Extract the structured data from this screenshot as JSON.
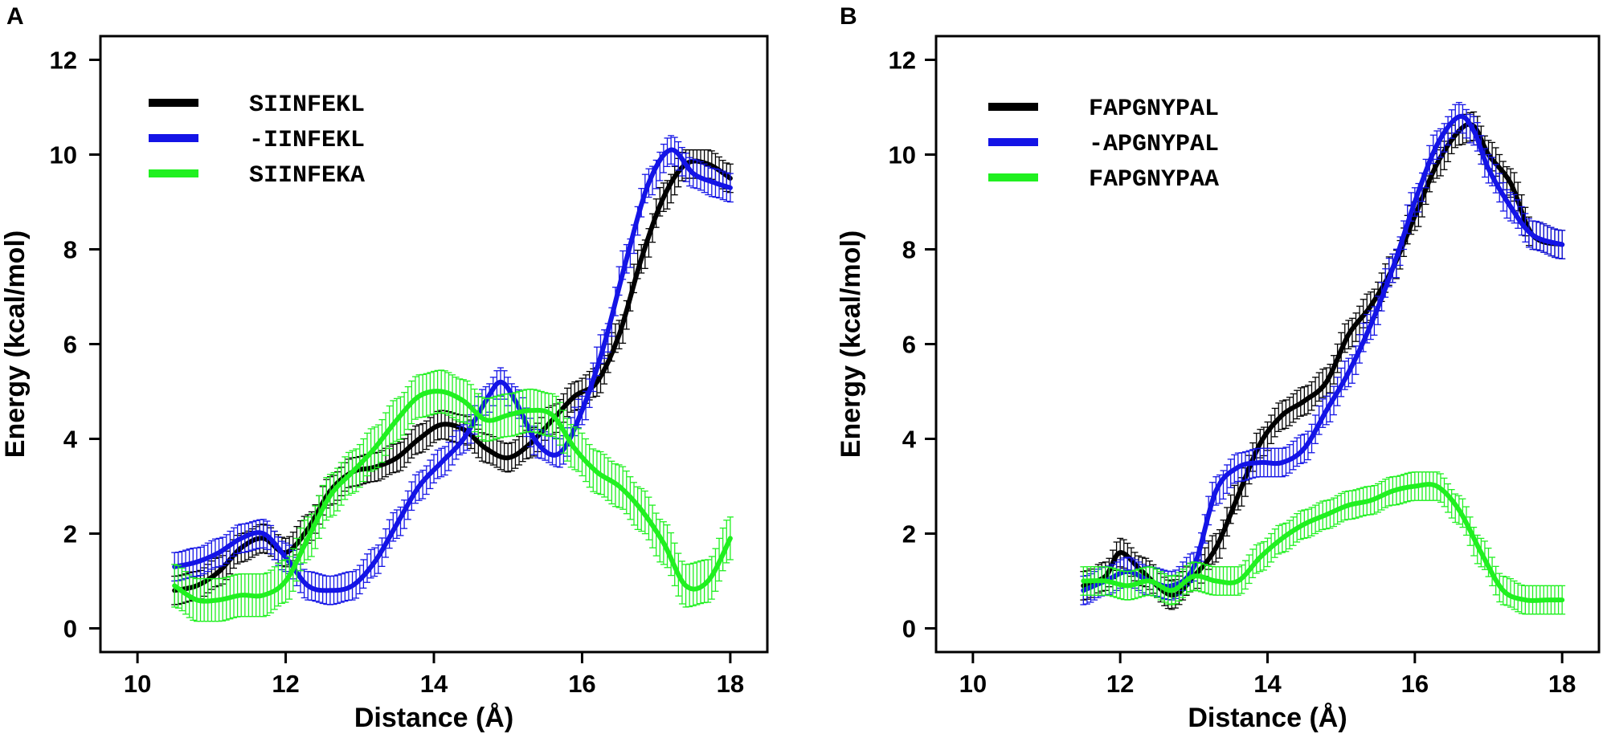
{
  "chart_data": [
    {
      "type": "line",
      "panel_label": "A",
      "xlabel": "Distance (Å)",
      "ylabel": "Energy (kcal/mol)",
      "xlim": [
        9.5,
        18.5
      ],
      "ylim": [
        -0.5,
        12.5
      ],
      "xticks": [
        10,
        12,
        14,
        16,
        18
      ],
      "yticks": [
        0,
        2,
        4,
        6,
        8,
        10,
        12
      ],
      "error_bars": true,
      "legend_position": "top-left",
      "series": [
        {
          "name": "SIINFEKL",
          "color": "#000000",
          "err": 0.3,
          "x": [
            10.5,
            10.8,
            11.1,
            11.4,
            11.7,
            12.0,
            12.3,
            12.6,
            12.9,
            13.2,
            13.5,
            13.8,
            14.1,
            14.4,
            14.7,
            15.0,
            15.3,
            15.6,
            15.9,
            16.2,
            16.5,
            16.8,
            17.1,
            17.4,
            17.7,
            18.0
          ],
          "y": [
            0.8,
            0.9,
            1.2,
            1.7,
            1.9,
            1.6,
            2.1,
            2.9,
            3.3,
            3.4,
            3.6,
            4.0,
            4.3,
            4.2,
            3.8,
            3.6,
            3.9,
            4.4,
            4.9,
            5.2,
            6.2,
            7.8,
            9.1,
            9.8,
            9.8,
            9.5
          ]
        },
        {
          "name": "-IINFEKL",
          "color": "#1414e6",
          "err": 0.3,
          "x": [
            10.5,
            10.8,
            11.1,
            11.4,
            11.7,
            12.0,
            12.3,
            12.6,
            12.9,
            13.2,
            13.5,
            13.8,
            14.1,
            14.4,
            14.7,
            14.9,
            15.1,
            15.4,
            15.7,
            16.0,
            16.3,
            16.6,
            16.9,
            17.2,
            17.5,
            17.8,
            18.0
          ],
          "y": [
            1.3,
            1.4,
            1.6,
            1.9,
            2.0,
            1.5,
            0.9,
            0.8,
            0.9,
            1.4,
            2.2,
            3.0,
            3.5,
            4.0,
            4.8,
            5.2,
            4.8,
            3.9,
            3.7,
            4.6,
            6.0,
            7.8,
            9.4,
            10.1,
            9.6,
            9.4,
            9.3
          ]
        },
        {
          "name": "SIINFEKA",
          "color": "#20f020",
          "err": 0.45,
          "x": [
            10.5,
            10.8,
            11.1,
            11.4,
            11.7,
            12.0,
            12.3,
            12.6,
            12.9,
            13.2,
            13.5,
            13.8,
            14.1,
            14.4,
            14.7,
            15.0,
            15.3,
            15.6,
            15.9,
            16.2,
            16.5,
            16.8,
            17.1,
            17.4,
            17.7,
            18.0
          ],
          "y": [
            0.9,
            0.6,
            0.6,
            0.7,
            0.7,
            1.0,
            1.9,
            2.8,
            3.3,
            3.8,
            4.4,
            4.9,
            5.0,
            4.8,
            4.4,
            4.5,
            4.6,
            4.5,
            3.8,
            3.3,
            3.0,
            2.5,
            1.8,
            0.9,
            1.0,
            1.9
          ]
        }
      ]
    },
    {
      "type": "line",
      "panel_label": "B",
      "xlabel": "Distance (Å)",
      "ylabel": "Energy (kcal/mol)",
      "xlim": [
        9.5,
        18.5
      ],
      "ylim": [
        -0.5,
        12.5
      ],
      "xticks": [
        10,
        12,
        14,
        16,
        18
      ],
      "yticks": [
        0,
        2,
        4,
        6,
        8,
        10,
        12
      ],
      "error_bars": true,
      "legend_position": "top-left",
      "series": [
        {
          "name": "FAPGNYPAL",
          "color": "#000000",
          "err": 0.3,
          "x": [
            11.5,
            11.8,
            12.0,
            12.3,
            12.7,
            13.0,
            13.3,
            13.6,
            13.9,
            14.2,
            14.5,
            14.8,
            15.1,
            15.4,
            15.7,
            16.0,
            16.3,
            16.6,
            16.8,
            17.0,
            17.3,
            17.6,
            18.0
          ],
          "y": [
            0.9,
            1.1,
            1.6,
            1.2,
            0.7,
            1.1,
            1.7,
            2.8,
            3.9,
            4.5,
            4.8,
            5.2,
            6.2,
            6.8,
            7.6,
            8.7,
            9.8,
            10.5,
            10.6,
            10.0,
            9.4,
            8.3,
            8.1
          ]
        },
        {
          "name": "-APGNYPAL",
          "color": "#1414e6",
          "err": 0.3,
          "x": [
            11.5,
            11.8,
            12.1,
            12.4,
            12.7,
            13.0,
            13.3,
            13.6,
            13.9,
            14.2,
            14.5,
            14.8,
            15.1,
            15.4,
            15.7,
            16.0,
            16.3,
            16.6,
            16.8,
            17.0,
            17.3,
            17.6,
            18.0
          ],
          "y": [
            0.8,
            1.0,
            1.2,
            1.0,
            0.9,
            1.3,
            2.9,
            3.4,
            3.5,
            3.5,
            3.8,
            4.6,
            5.4,
            6.4,
            7.6,
            9.0,
            10.2,
            10.8,
            10.5,
            9.7,
            8.9,
            8.3,
            8.1
          ]
        },
        {
          "name": "FAPGNYPAA",
          "color": "#20f020",
          "err": 0.3,
          "x": [
            11.5,
            11.8,
            12.1,
            12.4,
            12.7,
            13.0,
            13.3,
            13.6,
            13.9,
            14.2,
            14.5,
            14.8,
            15.1,
            15.4,
            15.7,
            16.0,
            16.3,
            16.6,
            16.9,
            17.2,
            17.5,
            17.8,
            18.0
          ],
          "y": [
            1.0,
            1.0,
            0.9,
            1.0,
            0.8,
            1.1,
            1.0,
            1.0,
            1.5,
            1.9,
            2.2,
            2.4,
            2.6,
            2.7,
            2.9,
            3.0,
            3.0,
            2.5,
            1.6,
            0.8,
            0.6,
            0.6,
            0.6
          ]
        }
      ]
    }
  ]
}
